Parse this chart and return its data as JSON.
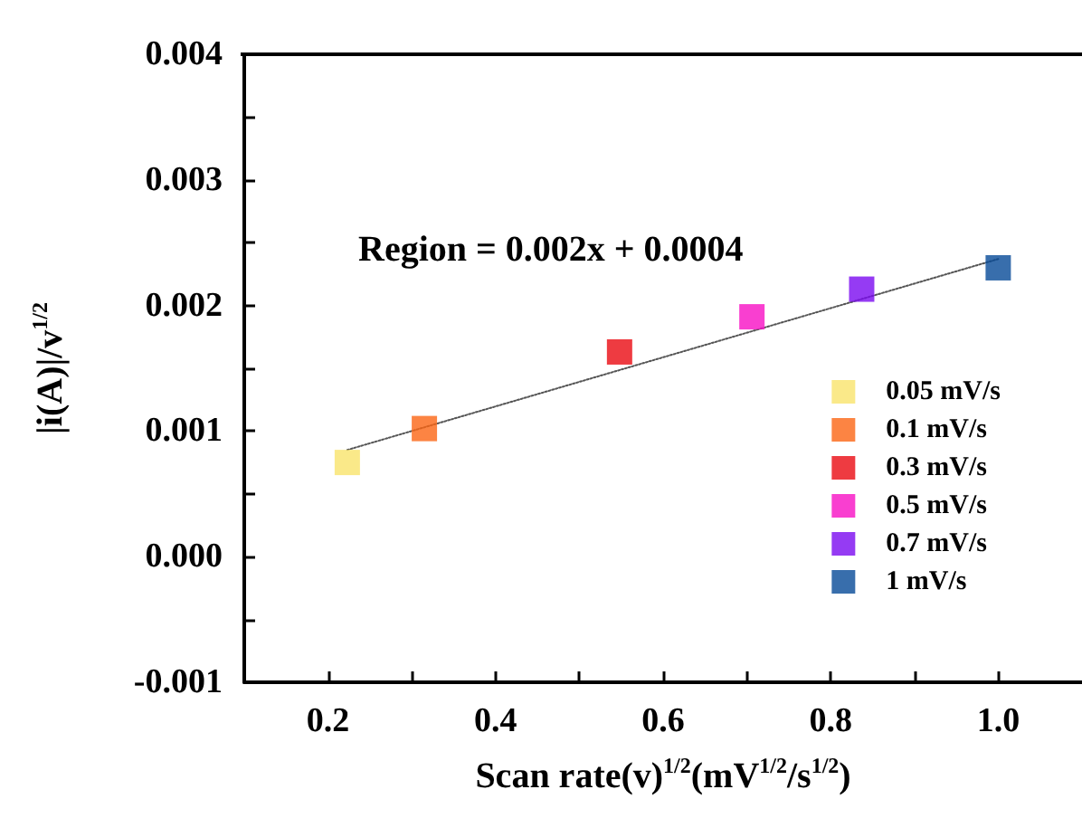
{
  "chart_data": {
    "type": "scatter",
    "xlabel": "Scan rate(v)$^{1/2}$(mV$^{1/2}$/s$^{1/2}$)",
    "ylabel": "|i(A)|/v$^{1/2}$",
    "annotations": [
      "Region = 0.002x + 0.0004"
    ],
    "xlim": [
      0.1,
      1.1
    ],
    "xticks": [
      {
        "value": 0.1,
        "label": null
      },
      0.2,
      {
        "value": 0.3,
        "label": null
      },
      0.4,
      {
        "value": 0.5,
        "label": null
      },
      0.6,
      {
        "value": 0.7,
        "label": null
      },
      0.8,
      {
        "value": 0.9,
        "label": null
      },
      {
        "value": 1.0,
        "label": "1.0"
      }
    ],
    "ylim": [
      -0.001,
      0.004
    ],
    "yticks": [
      -0.001,
      {
        "value": -0.0005,
        "label": null
      },
      {
        "value": 0,
        "label": "0.000"
      },
      {
        "value": 0.0005,
        "label": null
      },
      0.001,
      {
        "value": 0.0015,
        "label": null
      },
      0.002,
      {
        "value": 0.0025,
        "label": null
      },
      0.003,
      {
        "value": 0.0035,
        "label": null
      },
      0.004
    ],
    "marker": "square",
    "grid": false,
    "legend": "right",
    "series": [
      {
        "type": "line",
        "marker": "none",
        "line_style": "dotted",
        "color": "#555555",
        "x": [
          0.223,
          1.0
        ],
        "values": [
          0.00085,
          0.00237
        ]
      },
      {
        "name": "0.05 mV/s",
        "color": "#f9e46b",
        "x": [
          0.223
        ],
        "values": [
          0.00075
        ]
      },
      {
        "name": "0.1 mV/s",
        "color": "#fb6514",
        "x": [
          0.315
        ],
        "values": [
          0.00102
        ]
      },
      {
        "name": "0.3 mV/s",
        "color": "#ea0a12",
        "x": [
          0.548
        ],
        "values": [
          0.00163
        ]
      },
      {
        "name": "0.5 mV/s",
        "color": "#f70fc4",
        "x": [
          0.706
        ],
        "values": [
          0.00191
        ]
      },
      {
        "name": "0.7 mV/s",
        "color": "#7b0af0",
        "x": [
          0.837
        ],
        "values": [
          0.00213
        ]
      },
      {
        "name": "1 mV/s",
        "color": "#064a97",
        "x": [
          1.0
        ],
        "values": [
          0.0023
        ]
      }
    ]
  }
}
